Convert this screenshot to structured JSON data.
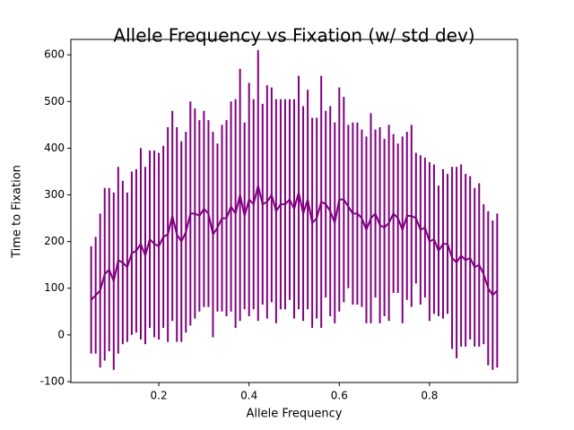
{
  "chart_data": {
    "type": "errorbar",
    "title": "Allele Frequency vs Fixation (w/ std dev)",
    "xlabel": "Allele Frequency",
    "ylabel": "Time to Fixation",
    "color": "#800080",
    "x": [
      0.05,
      0.06,
      0.07,
      0.08,
      0.09,
      0.1,
      0.11,
      0.12,
      0.13,
      0.14,
      0.15,
      0.16,
      0.17,
      0.18,
      0.19,
      0.2,
      0.21,
      0.22,
      0.23,
      0.24,
      0.25,
      0.26,
      0.27,
      0.28,
      0.29,
      0.3,
      0.31,
      0.32,
      0.33,
      0.34,
      0.35,
      0.36,
      0.37,
      0.38,
      0.39,
      0.4,
      0.41,
      0.42,
      0.43,
      0.44,
      0.45,
      0.46,
      0.47,
      0.48,
      0.49,
      0.5,
      0.51,
      0.52,
      0.53,
      0.54,
      0.55,
      0.56,
      0.57,
      0.58,
      0.59,
      0.6,
      0.61,
      0.62,
      0.63,
      0.64,
      0.65,
      0.66,
      0.67,
      0.68,
      0.69,
      0.7,
      0.71,
      0.72,
      0.73,
      0.74,
      0.75,
      0.76,
      0.77,
      0.78,
      0.79,
      0.8,
      0.81,
      0.82,
      0.83,
      0.84,
      0.85,
      0.86,
      0.87,
      0.88,
      0.89,
      0.9,
      0.91,
      0.92,
      0.93,
      0.94,
      0.95
    ],
    "values": [
      75,
      85,
      95,
      130,
      140,
      115,
      160,
      155,
      145,
      175,
      180,
      195,
      170,
      205,
      195,
      190,
      210,
      215,
      255,
      215,
      200,
      220,
      260,
      260,
      255,
      270,
      260,
      215,
      230,
      250,
      250,
      275,
      260,
      300,
      255,
      290,
      280,
      320,
      280,
      285,
      300,
      265,
      280,
      280,
      290,
      270,
      305,
      260,
      290,
      240,
      250,
      285,
      280,
      265,
      240,
      290,
      290,
      275,
      260,
      260,
      250,
      225,
      250,
      260,
      235,
      230,
      240,
      260,
      250,
      225,
      255,
      255,
      250,
      225,
      230,
      200,
      205,
      180,
      195,
      195,
      165,
      155,
      170,
      160,
      165,
      145,
      150,
      130,
      100,
      85,
      95
    ],
    "errors": [
      115,
      125,
      165,
      185,
      175,
      190,
      200,
      175,
      160,
      175,
      175,
      205,
      190,
      190,
      200,
      200,
      195,
      230,
      225,
      230,
      215,
      215,
      240,
      225,
      205,
      210,
      200,
      220,
      180,
      200,
      210,
      225,
      245,
      270,
      200,
      250,
      225,
      290,
      215,
      250,
      230,
      240,
      225,
      225,
      215,
      235,
      250,
      230,
      235,
      225,
      215,
      270,
      200,
      225,
      215,
      240,
      220,
      175,
      195,
      195,
      190,
      200,
      225,
      180,
      210,
      190,
      210,
      170,
      160,
      200,
      180,
      195,
      140,
      160,
      150,
      170,
      160,
      140,
      160,
      150,
      195,
      205,
      195,
      185,
      175,
      170,
      175,
      150,
      165,
      160,
      165
    ],
    "xlim": [
      0.005,
      0.995
    ],
    "ylim": [
      -102,
      633
    ],
    "xticks": [
      0.2,
      0.4,
      0.6,
      0.8
    ],
    "yticks": [
      -100,
      0,
      100,
      200,
      300,
      400,
      500,
      600
    ]
  }
}
